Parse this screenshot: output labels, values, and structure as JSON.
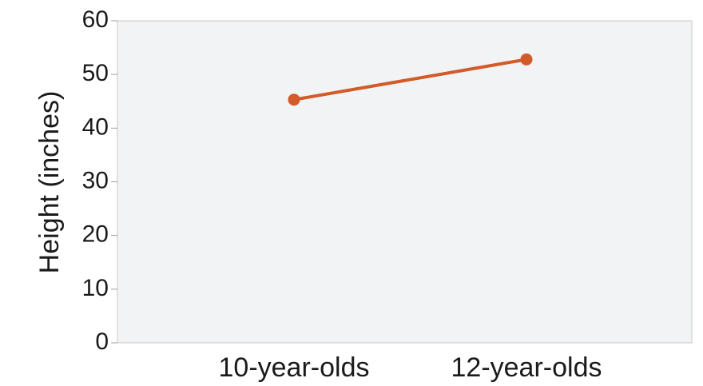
{
  "chart_data": {
    "type": "line",
    "title": "",
    "xlabel": "",
    "ylabel": "Height (inches)",
    "categories": [
      "10-year-olds",
      "12-year-olds"
    ],
    "series": [
      {
        "values": [
          45.3,
          52.8
        ]
      }
    ],
    "ylim": [
      0,
      60
    ],
    "yticks": [
      0,
      10,
      20,
      30,
      40,
      50,
      60
    ],
    "grid": false,
    "legend": "none",
    "colors": {
      "line": "#d35a29",
      "plot_background": "#f2f3f5",
      "axis": "#bdbdbd"
    }
  }
}
